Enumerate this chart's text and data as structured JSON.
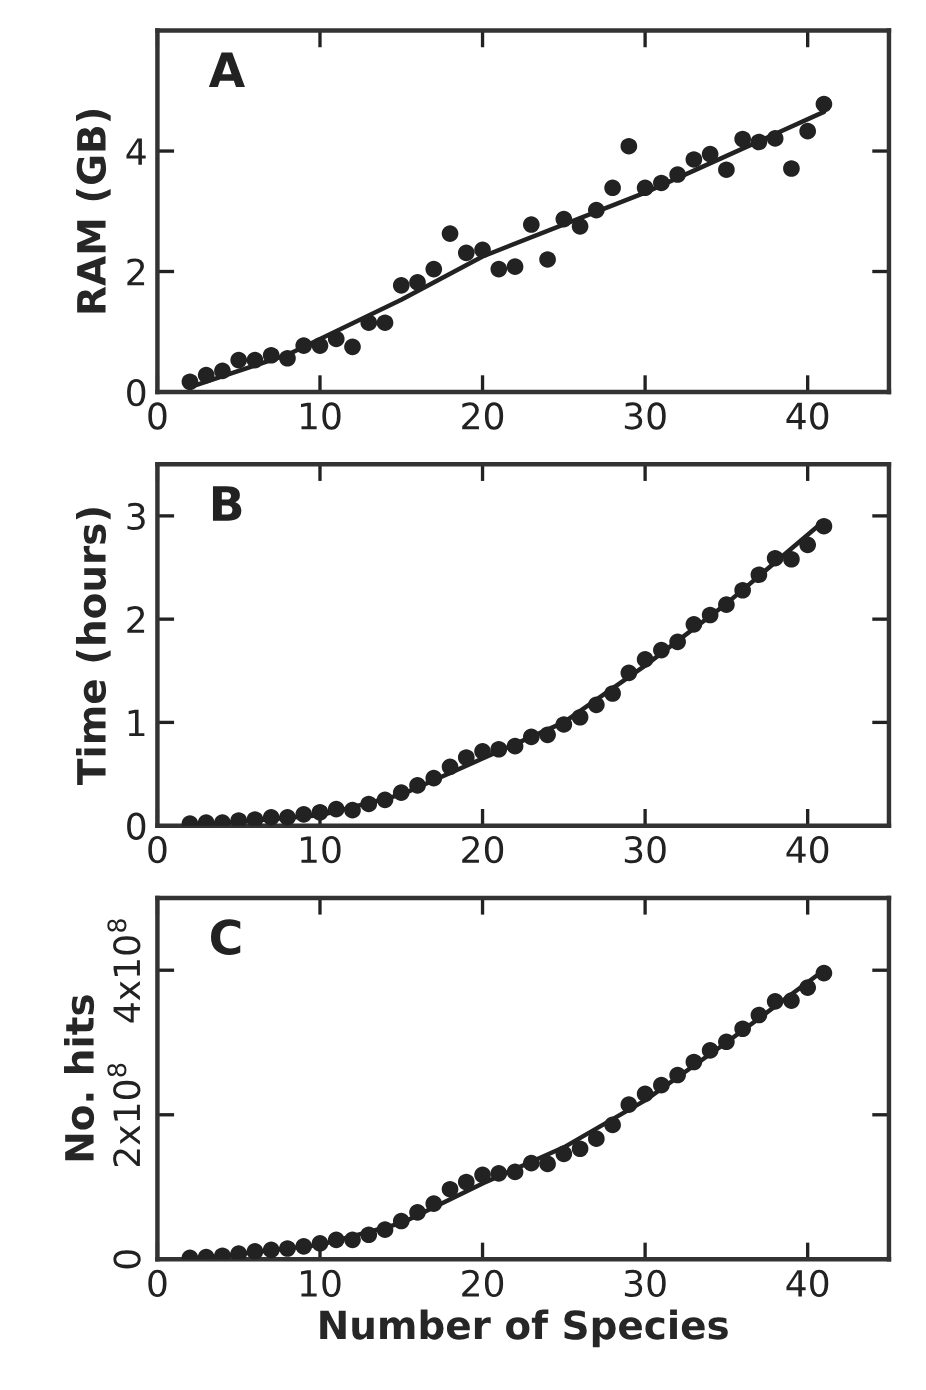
{
  "chart_data": [
    {
      "type": "scatter",
      "annotations": [
        "A"
      ],
      "ylabel": "RAM (GB)",
      "xlim": [
        0,
        45
      ],
      "xticks": [
        0,
        10,
        20,
        30,
        40
      ],
      "ylim": [
        0,
        6
      ],
      "yticks": [
        0,
        2,
        4
      ],
      "grid": false,
      "series": [
        {
          "color": "#222222",
          "marker": "circle",
          "x": [
            2,
            3,
            4,
            5,
            6,
            7,
            8,
            9,
            10,
            11,
            12,
            13,
            14,
            15,
            16,
            17,
            18,
            19,
            20,
            21,
            22,
            23,
            24,
            25,
            26,
            27,
            28,
            29,
            30,
            31,
            32,
            33,
            34,
            35,
            36,
            37,
            38,
            39,
            40,
            41
          ],
          "values": [
            0.17,
            0.28,
            0.35,
            0.53,
            0.53,
            0.61,
            0.56,
            0.77,
            0.77,
            0.88,
            0.75,
            1.15,
            1.15,
            1.77,
            1.82,
            2.04,
            2.63,
            2.31,
            2.36,
            2.04,
            2.08,
            2.78,
            2.2,
            2.87,
            2.75,
            3.02,
            3.39,
            4.08,
            3.39,
            3.47,
            3.61,
            3.86,
            3.95,
            3.69,
            4.2,
            4.15,
            4.21,
            3.71,
            4.33,
            4.78
          ]
        },
        {
          "type": "line",
          "color": "#222222",
          "line_style": "solid",
          "x": [
            2,
            8,
            15,
            20,
            30,
            41
          ],
          "values": [
            0.08,
            0.62,
            1.53,
            2.25,
            3.31,
            4.65
          ]
        }
      ]
    },
    {
      "type": "scatter",
      "annotations": [
        "B"
      ],
      "ylabel": "Time (hours)",
      "xlim": [
        0,
        45
      ],
      "xticks": [
        0,
        10,
        20,
        30,
        40
      ],
      "ylim": [
        0,
        3.5
      ],
      "yticks": [
        0,
        1,
        2,
        3
      ],
      "grid": false,
      "series": [
        {
          "color": "#222222",
          "marker": "circle",
          "x": [
            2,
            3,
            4,
            5,
            6,
            7,
            8,
            9,
            10,
            11,
            12,
            13,
            14,
            15,
            16,
            17,
            18,
            19,
            20,
            21,
            22,
            23,
            24,
            25,
            26,
            27,
            28,
            29,
            30,
            31,
            32,
            33,
            34,
            35,
            36,
            37,
            38,
            39,
            40,
            41
          ],
          "values": [
            0.02,
            0.03,
            0.03,
            0.05,
            0.06,
            0.08,
            0.08,
            0.11,
            0.13,
            0.16,
            0.15,
            0.21,
            0.25,
            0.32,
            0.39,
            0.46,
            0.57,
            0.66,
            0.72,
            0.74,
            0.77,
            0.86,
            0.88,
            0.98,
            1.05,
            1.17,
            1.28,
            1.48,
            1.61,
            1.7,
            1.78,
            1.95,
            2.04,
            2.14,
            2.28,
            2.43,
            2.59,
            2.58,
            2.72,
            2.9
          ]
        },
        {
          "type": "line",
          "color": "#222222",
          "line_style": "solid",
          "x": [
            2,
            10,
            15,
            20,
            25,
            30,
            35,
            41
          ],
          "values": [
            0.0,
            0.1,
            0.3,
            0.65,
            1.0,
            1.55,
            2.15,
            2.95
          ]
        }
      ]
    },
    {
      "type": "scatter",
      "annotations": [
        "C"
      ],
      "ylabel": "No. hits",
      "xlabel": "Number of Species",
      "xlim": [
        0,
        45
      ],
      "xticks": [
        0,
        10,
        20,
        30,
        40
      ],
      "ylim": [
        0,
        500000000.0
      ],
      "yticks": [
        0,
        {
          "value": 200000000.0,
          "label": "2x10$^{8}$"
        },
        {
          "value": 400000000.0,
          "label": "4x10$^{8}$"
        }
      ],
      "grid": false,
      "series": [
        {
          "color": "#222222",
          "marker": "circle",
          "x": [
            2,
            3,
            4,
            5,
            6,
            7,
            8,
            9,
            10,
            11,
            12,
            13,
            14,
            15,
            16,
            17,
            18,
            19,
            20,
            21,
            22,
            23,
            24,
            25,
            26,
            27,
            28,
            29,
            30,
            31,
            32,
            33,
            34,
            35,
            36,
            37,
            38,
            39,
            40,
            41
          ],
          "values": [
            2000000.0,
            3000000.0,
            5000000.0,
            8000000.0,
            11000000.0,
            13000000.0,
            15000000.0,
            18000000.0,
            22000000.0,
            27000000.0,
            27000000.0,
            34000000.0,
            41000000.0,
            53000000.0,
            65000000.0,
            77000000.0,
            97000000.0,
            107000000.0,
            117000000.0,
            119000000.0,
            121000000.0,
            133000000.0,
            132000000.0,
            146000000.0,
            153000000.0,
            167000000.0,
            186000000.0,
            214000000.0,
            229000000.0,
            241000000.0,
            255000000.0,
            273000000.0,
            289000000.0,
            301000000.0,
            319000000.0,
            338000000.0,
            357000000.0,
            358000000.0,
            376000000.0,
            396000000.0
          ]
        },
        {
          "type": "line",
          "color": "#222222",
          "line_style": "solid",
          "x": [
            2,
            10,
            15,
            20,
            25,
            30,
            35,
            41
          ],
          "values": [
            0,
            20000000.0,
            50000000.0,
            105000000.0,
            155000000.0,
            220000000.0,
            300000000.0,
            400000000.0
          ]
        }
      ]
    }
  ]
}
